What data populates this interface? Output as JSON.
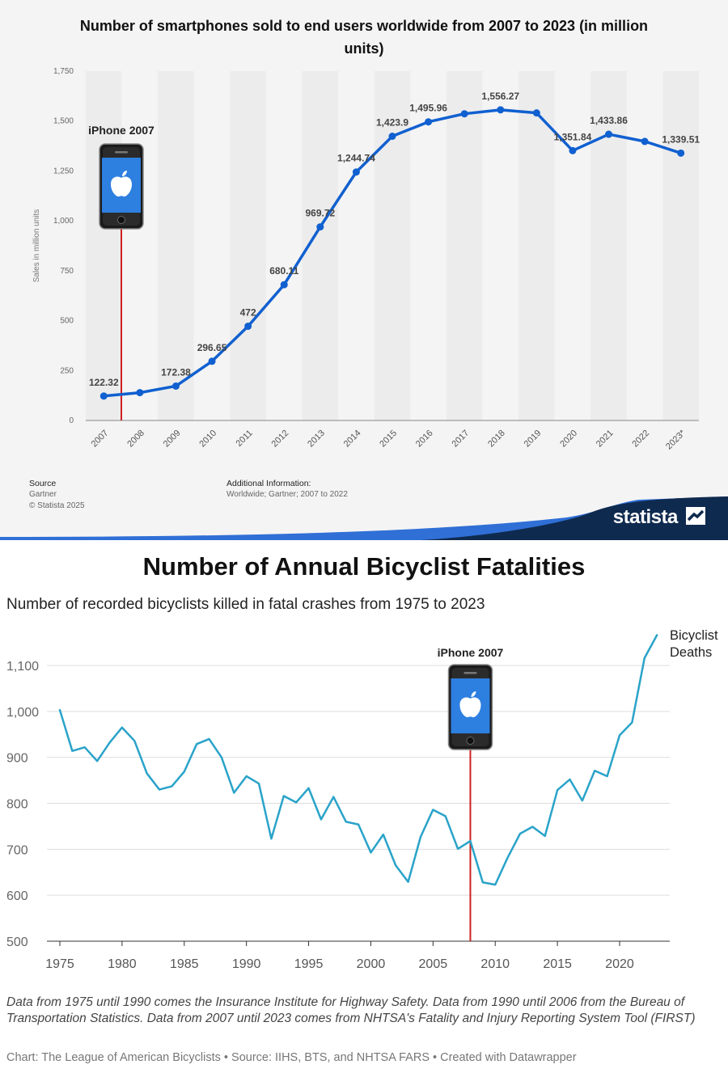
{
  "chart_data": [
    {
      "type": "line",
      "title": "Number of smartphones sold to end users worldwide from 2007 to 2023 (in million units)",
      "ylabel": "Sales in million units",
      "xlabel": "",
      "categories": [
        "2007",
        "2008",
        "2009",
        "2010",
        "2011",
        "2012",
        "2013",
        "2014",
        "2015",
        "2016",
        "2017",
        "2018",
        "2019",
        "2020",
        "2021",
        "2022",
        "2023*"
      ],
      "series": [
        {
          "values": [
            122.32,
            139.29,
            172.38,
            296.65,
            472,
            680.11,
            969.72,
            1244.74,
            1423.9,
            1495.96,
            1536.54,
            1556.27,
            1540.66,
            1351.84,
            1433.86,
            1398.0,
            1339.51
          ],
          "data_labels": [
            "122.32",
            "",
            "172.38",
            "296.65",
            "472",
            "680.11",
            "969.72",
            "1,244.74",
            "1,423.9",
            "1,495.96",
            "",
            "1,556.27",
            "",
            "1,351.84",
            "1,433.86",
            "",
            "1,339.51"
          ]
        }
      ],
      "ylim": [
        0,
        1750
      ],
      "yticks": [
        0,
        250,
        500,
        750,
        1000,
        1250,
        1500,
        1750
      ],
      "ytick_labels": [
        "0",
        "250",
        "500",
        "750",
        "1,000",
        "1,250",
        "1,500",
        "1,750"
      ],
      "grid": "alternating vertical bands",
      "annotation": {
        "label": "iPhone 2007",
        "x": "2007"
      },
      "colors": {
        "line": "#1060d0",
        "annotation_line": "#cc2222"
      }
    },
    {
      "type": "line",
      "title": "Number of Annual Bicyclist Fatalities",
      "subtitle": "Number of recorded bicyclists killed in fatal crashes from 1975 to 2023",
      "xlabel": "",
      "ylabel": "",
      "x": [
        1975,
        1976,
        1977,
        1978,
        1979,
        1980,
        1981,
        1982,
        1983,
        1984,
        1985,
        1986,
        1987,
        1988,
        1989,
        1990,
        1991,
        1992,
        1993,
        1994,
        1995,
        1996,
        1997,
        1998,
        1999,
        2000,
        2001,
        2002,
        2003,
        2004,
        2005,
        2006,
        2007,
        2008,
        2009,
        2010,
        2011,
        2012,
        2013,
        2014,
        2015,
        2016,
        2017,
        2018,
        2019,
        2020,
        2021,
        2022,
        2023
      ],
      "series": [
        {
          "name": "Bicyclist Deaths",
          "values": [
            1003,
            914,
            922,
            892,
            932,
            965,
            936,
            865,
            830,
            837,
            869,
            929,
            940,
            900,
            823,
            859,
            843,
            723,
            816,
            802,
            833,
            765,
            814,
            760,
            754,
            693,
            732,
            665,
            629,
            727,
            786,
            772,
            701,
            718,
            628,
            623,
            682,
            734,
            749,
            729,
            829,
            852,
            806,
            871,
            859,
            948,
            976,
            1116,
            1166
          ]
        }
      ],
      "xticks": [
        1975,
        1980,
        1985,
        1990,
        1995,
        2000,
        2005,
        2010,
        2015,
        2020
      ],
      "ylim": [
        500,
        1166
      ],
      "yticks": [
        500,
        600,
        700,
        800,
        900,
        1000,
        1100
      ],
      "ytick_labels": [
        "500",
        "600",
        "700",
        "800",
        "900",
        "1,000",
        "1,100"
      ],
      "grid": "horizontal",
      "annotation": {
        "label": "iPhone 2007",
        "x": 2008
      },
      "colors": {
        "line": "#2aa3c9",
        "annotation_line": "#cc2222"
      }
    }
  ],
  "top": {
    "source_heading": "Source",
    "source_lines": [
      "Gartner",
      "© Statista 2025"
    ],
    "additional_heading": "Additional Information:",
    "additional_text": "Worldwide; Gartner; 2007 to 2022",
    "logo": "statista"
  },
  "bottom": {
    "legend_label": "Bicyclist Deaths",
    "note": "Data from 1975 until 1990 comes the Insurance Institute for Highway Safety. Data from 1990 until 2006 from the Bureau of Transportation Statistics. Data from 2007 until 2023 comes from NHTSA's Fatality and Injury Reporting System Tool (FIRST)",
    "credit": "Chart: The League of American Bicyclists • Source: IIHS, BTS, and NHTSA FARS • Created with Datawrapper"
  },
  "icons": [
    "iphone-icon",
    "apple-logo-icon",
    "statista-logo-icon"
  ]
}
